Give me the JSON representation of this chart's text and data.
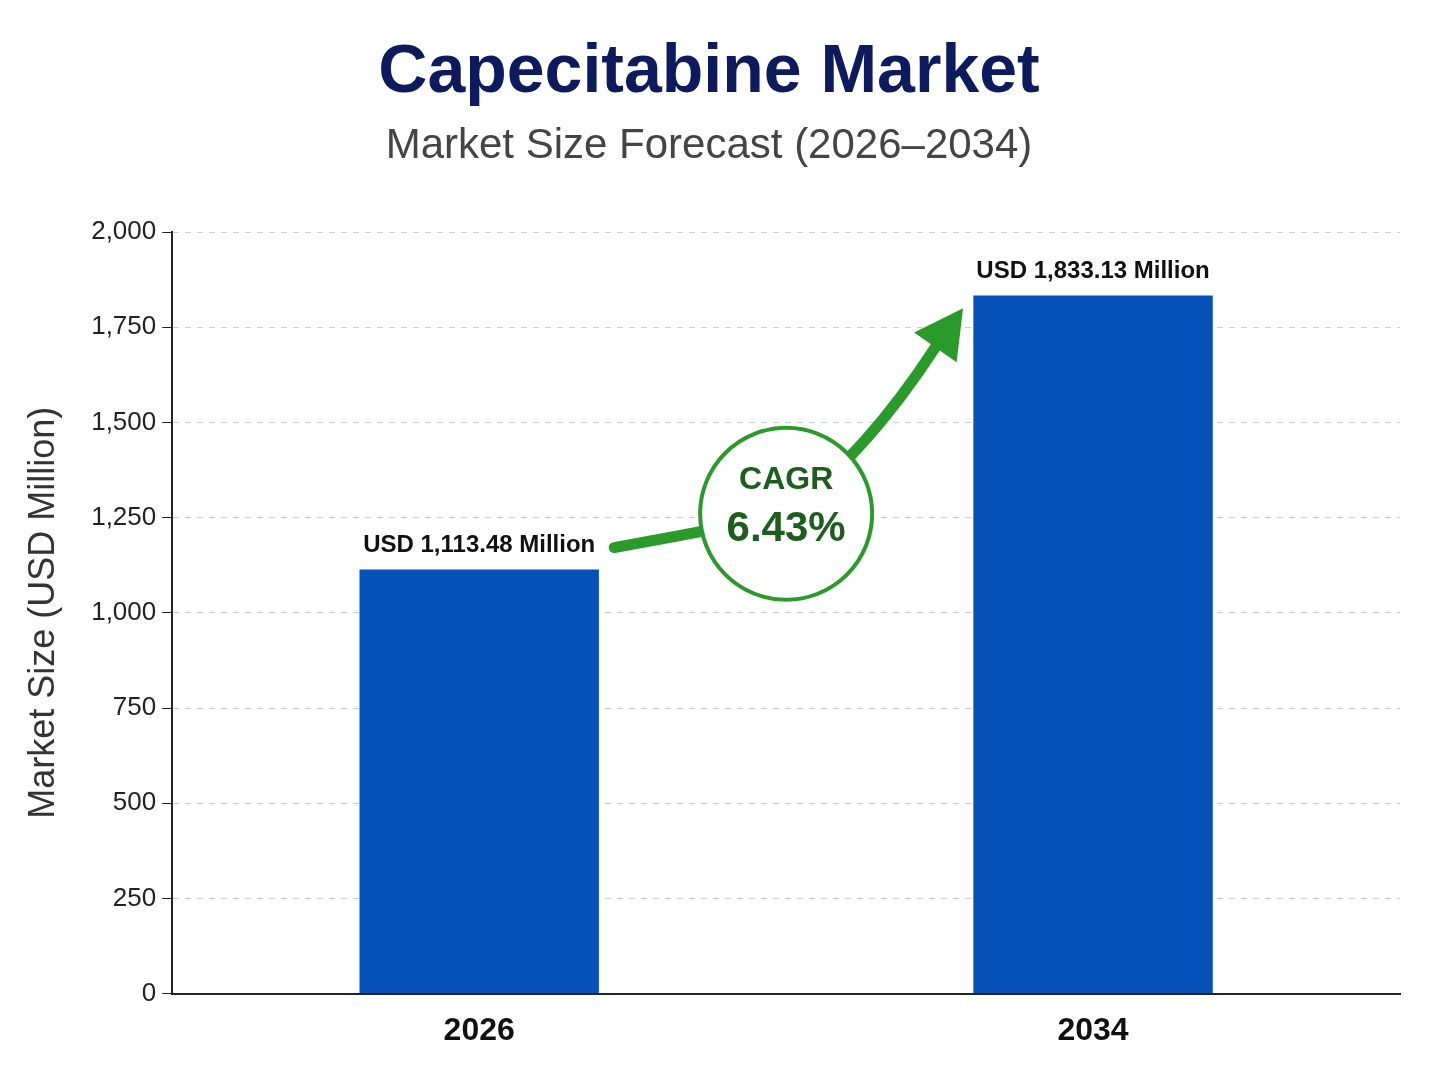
{
  "chart_data": {
    "type": "bar",
    "title": "Capecitabine Market",
    "subtitle": "Market Size Forecast (2026–2034)",
    "ylabel": "Market Size (USD Million)",
    "categories": [
      "2026",
      "2034"
    ],
    "values": [
      1113.48,
      1833.13
    ],
    "value_labels": [
      "USD 1,113.48 Million",
      "USD 1,833.13 Million"
    ],
    "color": "#0652b8",
    "ylim": [
      0,
      2000
    ],
    "yticks": [
      0,
      250,
      500,
      750,
      {
        "value": 1000,
        "label": "1,000"
      },
      {
        "value": 1250,
        "label": "1,250"
      },
      {
        "value": 1500,
        "label": "1,500"
      },
      {
        "value": 1750,
        "label": "1,750"
      },
      {
        "value": 2000,
        "label": "2,000"
      }
    ],
    "grid": "y",
    "line_style": "dashed",
    "legend": false,
    "annotations": [
      "CAGR",
      "6.43%"
    ]
  }
}
